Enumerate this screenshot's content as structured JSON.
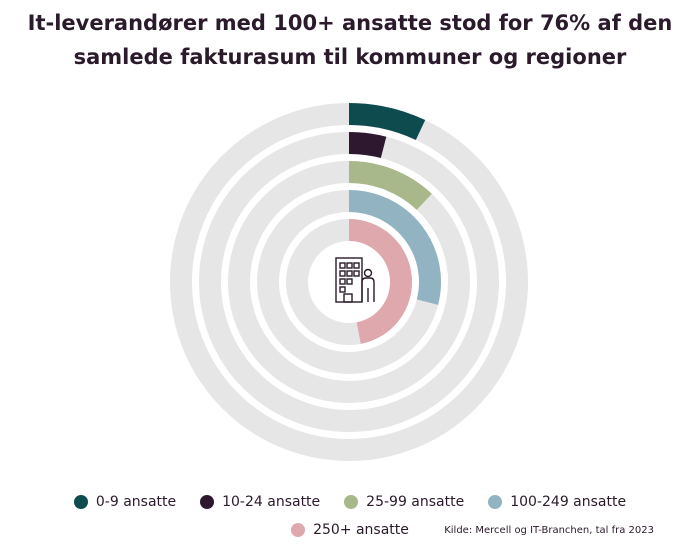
{
  "title_lines": [
    "It-leverandører med 100+ ansatte stod for 76% af den",
    "samlede fakturasum til kommuner og regioner"
  ],
  "source": "Kilde: Mercell og IT-Branchen, tal fra 2023",
  "center_icon": "office-building-person-icon",
  "chart_data": {
    "type": "radial-bar",
    "title": "It-leverandører med 100+ ansatte stod for 76% af den samlede fakturasum til kommuner og regioner",
    "unit": "percent",
    "range": [
      0,
      100
    ],
    "legend_position": "bottom",
    "series": [
      {
        "name": "0-9 ansatte",
        "value": 7,
        "color": "#0d4b4f"
      },
      {
        "name": "10-24 ansatte",
        "value": 4,
        "color": "#2e1830"
      },
      {
        "name": "25-99 ansatte",
        "value": 12,
        "color": "#a9b88a"
      },
      {
        "name": "100-249 ansatte",
        "value": 29,
        "color": "#92b3c2"
      },
      {
        "name": "250+ ansatte",
        "value": 47,
        "color": "#dfa8ad"
      }
    ],
    "track_color": "#e6e6e6"
  }
}
